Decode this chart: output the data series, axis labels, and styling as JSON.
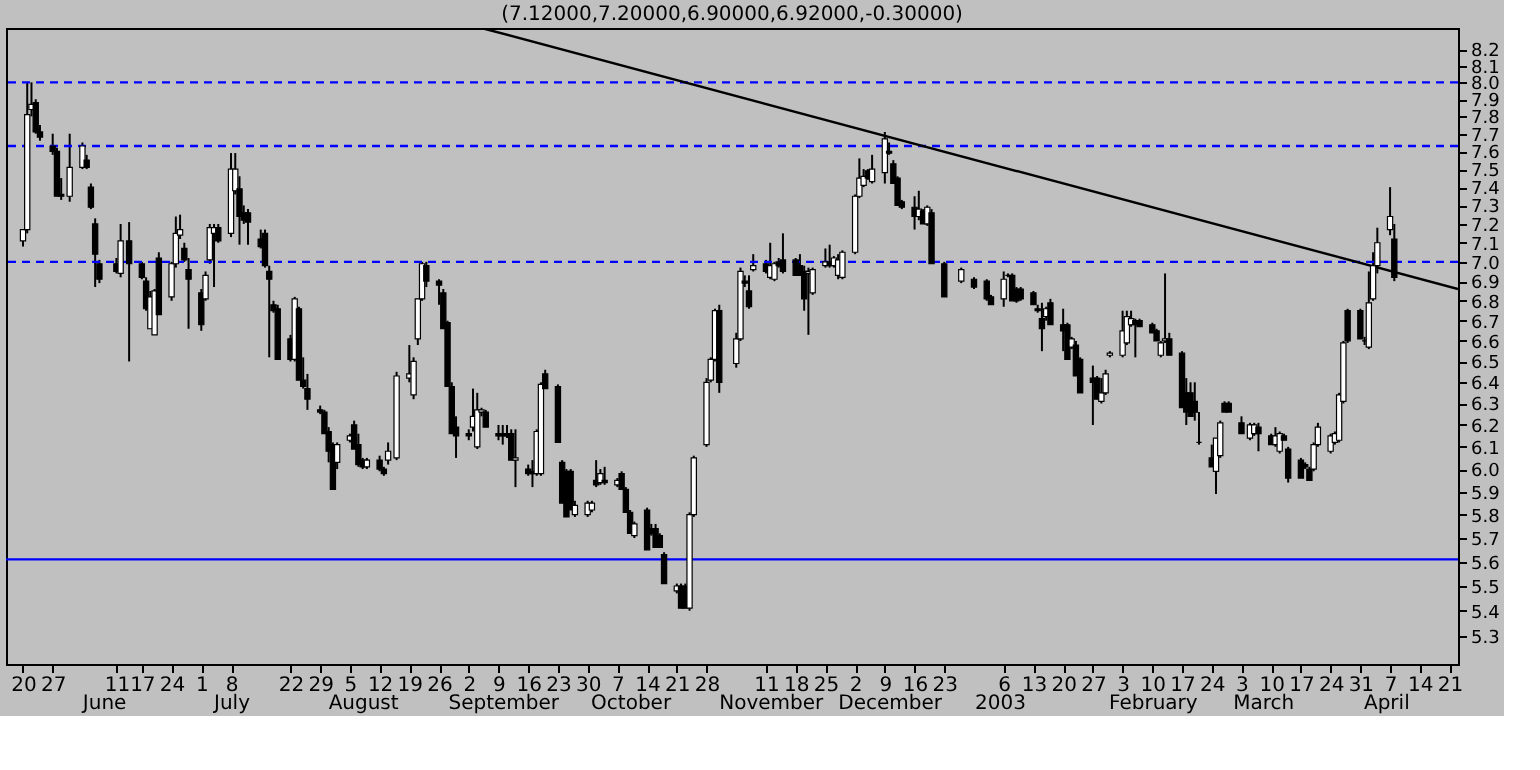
{
  "chart_data": {
    "type": "candlestick",
    "title": "(7.12000,7.20000,6.90000,6.92000,-0.30000)",
    "x": [
      "2002-05-20",
      "2002-05-21",
      "2002-05-22",
      "2002-05-23",
      "2002-05-24",
      "2002-05-27",
      "2002-05-28",
      "2002-05-29",
      "2002-05-31",
      "2002-06-03",
      "2002-06-04",
      "2002-06-05",
      "2002-06-06",
      "2002-06-07",
      "2002-06-11",
      "2002-06-12",
      "2002-06-14",
      "2002-06-17",
      "2002-06-18",
      "2002-06-19",
      "2002-06-20",
      "2002-06-21",
      "2002-06-24",
      "2002-06-25",
      "2002-06-26",
      "2002-06-27",
      "2002-06-28",
      "2002-07-01",
      "2002-07-02",
      "2002-07-03",
      "2002-07-04",
      "2002-07-05",
      "2002-07-08",
      "2002-07-09",
      "2002-07-10",
      "2002-07-11",
      "2002-07-12",
      "2002-07-15",
      "2002-07-16",
      "2002-07-17",
      "2002-07-18",
      "2002-07-19",
      "2002-07-22",
      "2002-07-23",
      "2002-07-24",
      "2002-07-25",
      "2002-07-26",
      "2002-07-29",
      "2002-07-30",
      "2002-07-31",
      "2002-08-01",
      "2002-08-02",
      "2002-08-05",
      "2002-08-06",
      "2002-08-07",
      "2002-08-08",
      "2002-08-09",
      "2002-08-12",
      "2002-08-13",
      "2002-08-14",
      "2002-08-16",
      "2002-08-19",
      "2002-08-20",
      "2002-08-21",
      "2002-08-22",
      "2002-08-23",
      "2002-08-26",
      "2002-08-27",
      "2002-08-28",
      "2002-08-29",
      "2002-08-30",
      "2002-09-02",
      "2002-09-03",
      "2002-09-04",
      "2002-09-05",
      "2002-09-06",
      "2002-09-09",
      "2002-09-10",
      "2002-09-11",
      "2002-09-12",
      "2002-09-13",
      "2002-09-16",
      "2002-09-17",
      "2002-09-18",
      "2002-09-19",
      "2002-09-20",
      "2002-09-23",
      "2002-09-24",
      "2002-09-25",
      "2002-09-26",
      "2002-09-27",
      "2002-09-30",
      "2002-10-01",
      "2002-10-02",
      "2002-10-03",
      "2002-10-04",
      "2002-10-07",
      "2002-10-08",
      "2002-10-09",
      "2002-10-10",
      "2002-10-11",
      "2002-10-14",
      "2002-10-15",
      "2002-10-16",
      "2002-10-17",
      "2002-10-18",
      "2002-10-21",
      "2002-10-22",
      "2002-10-23",
      "2002-10-24",
      "2002-10-25",
      "2002-10-28",
      "2002-10-29",
      "2002-10-30",
      "2002-10-31",
      "2002-11-04",
      "2002-11-05",
      "2002-11-06",
      "2002-11-07",
      "2002-11-08",
      "2002-11-11",
      "2002-11-12",
      "2002-11-13",
      "2002-11-14",
      "2002-11-15",
      "2002-11-18",
      "2002-11-19",
      "2002-11-20",
      "2002-11-21",
      "2002-11-22",
      "2002-11-25",
      "2002-11-26",
      "2002-11-27",
      "2002-11-28",
      "2002-11-29",
      "2002-12-02",
      "2002-12-03",
      "2002-12-04",
      "2002-12-05",
      "2002-12-06",
      "2002-12-09",
      "2002-12-10",
      "2002-12-11",
      "2002-12-12",
      "2002-12-13",
      "2002-12-16",
      "2002-12-17",
      "2002-12-18",
      "2002-12-19",
      "2002-12-20",
      "2002-12-23",
      "2002-12-27",
      "2002-12-30",
      "2003-01-02",
      "2003-01-03",
      "2003-01-06",
      "2003-01-07",
      "2003-01-08",
      "2003-01-09",
      "2003-01-10",
      "2003-01-13",
      "2003-01-14",
      "2003-01-15",
      "2003-01-16",
      "2003-01-17",
      "2003-01-20",
      "2003-01-21",
      "2003-01-22",
      "2003-01-23",
      "2003-01-24",
      "2003-01-27",
      "2003-01-28",
      "2003-01-29",
      "2003-01-30",
      "2003-01-31",
      "2003-02-03",
      "2003-02-04",
      "2003-02-05",
      "2003-02-06",
      "2003-02-07",
      "2003-02-10",
      "2003-02-11",
      "2003-02-12",
      "2003-02-13",
      "2003-02-14",
      "2003-02-17",
      "2003-02-18",
      "2003-02-19",
      "2003-02-20",
      "2003-02-21",
      "2003-02-24",
      "2003-02-25",
      "2003-02-26",
      "2003-02-27",
      "2003-02-28",
      "2003-03-03",
      "2003-03-05",
      "2003-03-06",
      "2003-03-07",
      "2003-03-10",
      "2003-03-11",
      "2003-03-12",
      "2003-03-13",
      "2003-03-14",
      "2003-03-17",
      "2003-03-18",
      "2003-03-19",
      "2003-03-20",
      "2003-03-21",
      "2003-03-24",
      "2003-03-25",
      "2003-03-26",
      "2003-03-27",
      "2003-03-28",
      "2003-03-31",
      "2003-04-01",
      "2003-04-02",
      "2003-04-03",
      "2003-04-04",
      "2003-04-07",
      "2003-04-08"
    ],
    "ohlc": [
      [
        7.11,
        7.17,
        7.08,
        7.17
      ],
      [
        7.17,
        8.0,
        7.15,
        7.81
      ],
      [
        7.84,
        8.0,
        7.8,
        7.87
      ],
      [
        7.88,
        7.9,
        7.7,
        7.71
      ],
      [
        7.71,
        7.75,
        7.66,
        7.68
      ],
      [
        7.63,
        7.7,
        7.58,
        7.6
      ],
      [
        7.6,
        7.62,
        7.35,
        7.35
      ],
      [
        7.36,
        7.45,
        7.33,
        7.35
      ],
      [
        7.35,
        7.7,
        7.32,
        7.51
      ],
      [
        7.51,
        7.65,
        7.5,
        7.63
      ],
      [
        7.55,
        7.58,
        7.5,
        7.51
      ],
      [
        7.4,
        7.42,
        7.28,
        7.29
      ],
      [
        7.2,
        7.23,
        6.87,
        7.04
      ],
      [
        6.99,
        7.01,
        6.89,
        6.91
      ],
      [
        6.99,
        7.02,
        6.94,
        6.95
      ],
      [
        6.94,
        7.2,
        6.92,
        7.11
      ],
      [
        7.11,
        7.21,
        6.5,
        6.99
      ],
      [
        6.99,
        7.0,
        6.91,
        6.92
      ],
      [
        6.9,
        6.92,
        6.75,
        6.76
      ],
      [
        6.66,
        6.85,
        6.66,
        6.82
      ],
      [
        6.63,
        6.86,
        6.63,
        6.85
      ],
      [
        7.02,
        7.05,
        6.73,
        6.73
      ],
      [
        6.82,
        7.0,
        6.8,
        6.99
      ],
      [
        6.99,
        7.24,
        6.97,
        7.15
      ],
      [
        7.14,
        7.25,
        7.12,
        7.17
      ],
      [
        7.07,
        7.1,
        7.0,
        7.01
      ],
      [
        6.96,
        7.02,
        6.66,
        6.91
      ],
      [
        6.84,
        6.86,
        6.65,
        6.68
      ],
      [
        6.81,
        6.95,
        6.8,
        6.93
      ],
      [
        7.01,
        7.2,
        6.99,
        7.18
      ],
      [
        7.15,
        7.2,
        6.87,
        7.18
      ],
      [
        7.18,
        7.2,
        7.1,
        7.11
      ],
      [
        7.15,
        7.59,
        7.13,
        7.5
      ],
      [
        7.38,
        7.59,
        7.36,
        7.5
      ],
      [
        7.39,
        7.46,
        7.09,
        7.24
      ],
      [
        7.26,
        7.3,
        7.2,
        7.22
      ],
      [
        7.26,
        7.28,
        7.09,
        7.21
      ],
      [
        7.12,
        7.17,
        7.07,
        7.08
      ],
      [
        7.15,
        7.17,
        6.97,
        6.98
      ],
      [
        6.95,
        6.98,
        6.52,
        6.91
      ],
      [
        6.78,
        6.8,
        6.74,
        6.75
      ],
      [
        6.76,
        6.78,
        6.51,
        6.51
      ],
      [
        6.61,
        6.63,
        6.5,
        6.51
      ],
      [
        6.51,
        6.82,
        6.5,
        6.81
      ],
      [
        6.76,
        6.77,
        6.41,
        6.41
      ],
      [
        6.41,
        6.52,
        6.37,
        6.38
      ],
      [
        6.37,
        6.44,
        6.27,
        6.32
      ],
      [
        6.27,
        6.29,
        6.25,
        6.26
      ],
      [
        6.26,
        6.27,
        6.16,
        6.16
      ],
      [
        6.17,
        6.19,
        6.03,
        6.08
      ],
      [
        6.11,
        6.12,
        5.91,
        5.91
      ],
      [
        6.03,
        6.12,
        6.0,
        6.11
      ],
      [
        6.13,
        6.16,
        6.12,
        6.15
      ],
      [
        6.2,
        6.22,
        6.09,
        6.09
      ],
      [
        6.11,
        6.16,
        6.01,
        6.02
      ],
      [
        6.04,
        6.05,
        6.0,
        6.01
      ],
      [
        6.01,
        6.05,
        6.0,
        6.04
      ],
      [
        6.04,
        6.06,
        5.99,
        6.0
      ],
      [
        6.0,
        6.01,
        5.97,
        5.98
      ],
      [
        6.04,
        6.12,
        6.02,
        6.08
      ],
      [
        6.05,
        6.45,
        6.04,
        6.43
      ],
      [
        6.42,
        6.58,
        6.4,
        6.44
      ],
      [
        6.34,
        6.52,
        6.32,
        6.5
      ],
      [
        6.61,
        6.81,
        6.58,
        6.81
      ],
      [
        6.81,
        7.0,
        6.8,
        6.99
      ],
      [
        6.98,
        7.0,
        6.87,
        6.9
      ],
      [
        6.9,
        6.91,
        6.78,
        6.88
      ],
      [
        6.84,
        6.86,
        6.66,
        6.66
      ],
      [
        6.69,
        6.7,
        6.38,
        6.38
      ],
      [
        6.38,
        6.4,
        6.16,
        6.16
      ],
      [
        6.19,
        6.24,
        6.05,
        6.15
      ],
      [
        6.16,
        6.18,
        6.13,
        6.15
      ],
      [
        6.19,
        6.37,
        6.17,
        6.24
      ],
      [
        6.1,
        6.35,
        6.09,
        6.27
      ],
      [
        6.26,
        6.28,
        6.24,
        6.27
      ],
      [
        6.26,
        6.27,
        6.19,
        6.19
      ],
      [
        6.16,
        6.2,
        6.13,
        6.15
      ],
      [
        6.16,
        6.2,
        6.11,
        6.15
      ],
      [
        6.16,
        6.2,
        6.14,
        6.15
      ],
      [
        6.16,
        6.18,
        6.04,
        6.04
      ],
      [
        6.04,
        6.18,
        5.92,
        6.05
      ],
      [
        6.0,
        6.02,
        5.97,
        5.98
      ],
      [
        5.99,
        6.04,
        5.92,
        5.98
      ],
      [
        5.98,
        6.18,
        5.97,
        6.17
      ],
      [
        5.98,
        6.4,
        5.97,
        6.39
      ],
      [
        6.44,
        6.46,
        6.37,
        6.37
      ],
      [
        6.38,
        6.39,
        6.12,
        6.12
      ],
      [
        6.03,
        6.04,
        5.85,
        5.85
      ],
      [
        5.99,
        6.0,
        5.79,
        5.79
      ],
      [
        5.99,
        6.0,
        5.82,
        5.82
      ],
      [
        5.8,
        5.86,
        5.79,
        5.84
      ],
      [
        5.8,
        5.86,
        5.79,
        5.85
      ],
      [
        5.82,
        5.86,
        5.81,
        5.85
      ],
      [
        5.95,
        6.04,
        5.92,
        5.93
      ],
      [
        5.94,
        6.0,
        5.93,
        5.98
      ],
      [
        5.95,
        6.01,
        5.93,
        5.94
      ],
      [
        5.93,
        5.96,
        5.92,
        5.95
      ],
      [
        5.98,
        5.99,
        5.91,
        5.91
      ],
      [
        5.91,
        5.92,
        5.81,
        5.81
      ],
      [
        5.81,
        5.82,
        5.72,
        5.72
      ],
      [
        5.71,
        5.77,
        5.7,
        5.76
      ],
      [
        5.82,
        5.83,
        5.65,
        5.65
      ],
      [
        5.74,
        5.76,
        5.71,
        5.72
      ],
      [
        5.74,
        5.76,
        5.66,
        5.66
      ],
      [
        5.71,
        5.72,
        5.66,
        5.66
      ],
      [
        5.63,
        5.64,
        5.51,
        5.51
      ],
      [
        5.48,
        5.51,
        5.47,
        5.5
      ],
      [
        5.5,
        5.51,
        5.41,
        5.41
      ],
      [
        5.5,
        5.51,
        5.41,
        5.41
      ],
      [
        5.41,
        5.81,
        5.4,
        5.8
      ],
      [
        5.8,
        6.06,
        5.79,
        6.05
      ],
      [
        6.11,
        6.42,
        6.1,
        6.4
      ],
      [
        6.41,
        6.52,
        6.4,
        6.51
      ],
      [
        6.51,
        6.76,
        6.5,
        6.75
      ],
      [
        6.75,
        6.78,
        6.35,
        6.4
      ],
      [
        6.49,
        6.64,
        6.47,
        6.61
      ],
      [
        6.61,
        6.97,
        6.6,
        6.95
      ],
      [
        6.9,
        6.93,
        6.87,
        6.89
      ],
      [
        6.85,
        6.93,
        6.76,
        6.77
      ],
      [
        6.96,
        7.04,
        6.95,
        6.98
      ],
      [
        6.99,
        7.01,
        6.94,
        6.95
      ],
      [
        6.92,
        7.1,
        6.91,
        6.98
      ],
      [
        6.91,
        7.0,
        6.9,
        6.99
      ],
      [
        7.0,
        7.02,
        6.97,
        6.98
      ],
      [
        7.01,
        7.15,
        6.94,
        6.95
      ],
      [
        7.01,
        7.02,
        6.93,
        6.93
      ],
      [
        6.98,
        7.04,
        6.93,
        6.93
      ],
      [
        6.95,
        6.98,
        6.75,
        6.81
      ],
      [
        6.94,
        6.97,
        6.63,
        6.95
      ],
      [
        6.84,
        6.97,
        6.83,
        6.96
      ],
      [
        6.98,
        7.07,
        6.97,
        7.0
      ],
      [
        7.0,
        7.09,
        6.97,
        6.98
      ],
      [
        6.98,
        7.03,
        6.97,
        7.02
      ],
      [
        6.93,
        7.04,
        6.91,
        7.01
      ],
      [
        6.92,
        7.06,
        6.91,
        7.05
      ],
      [
        7.05,
        7.36,
        7.04,
        7.35
      ],
      [
        7.35,
        7.56,
        7.34,
        7.45
      ],
      [
        7.41,
        7.5,
        7.4,
        7.46
      ],
      [
        7.49,
        7.5,
        7.44,
        7.45
      ],
      [
        7.43,
        7.58,
        7.42,
        7.5
      ],
      [
        7.48,
        7.71,
        7.42,
        7.67
      ],
      [
        7.6,
        7.65,
        7.58,
        7.59
      ],
      [
        7.53,
        7.55,
        7.42,
        7.42
      ],
      [
        7.45,
        7.46,
        7.3,
        7.3
      ],
      [
        7.32,
        7.33,
        7.28,
        7.29
      ],
      [
        7.29,
        7.35,
        7.17,
        7.24
      ],
      [
        7.24,
        7.38,
        7.22,
        7.28
      ],
      [
        7.27,
        7.28,
        7.2,
        7.2
      ],
      [
        7.2,
        7.3,
        7.19,
        7.29
      ],
      [
        7.26,
        7.28,
        6.99,
        6.99
      ],
      [
        6.99,
        7.0,
        6.82,
        6.82
      ],
      [
        6.9,
        6.97,
        6.89,
        6.96
      ],
      [
        6.91,
        6.92,
        6.86,
        6.87
      ],
      [
        6.9,
        6.91,
        6.8,
        6.81
      ],
      [
        6.82,
        6.83,
        6.78,
        6.78
      ],
      [
        6.81,
        6.95,
        6.77,
        6.91
      ],
      [
        6.93,
        6.94,
        6.92,
        6.93
      ],
      [
        6.93,
        6.94,
        6.8,
        6.8
      ],
      [
        6.86,
        6.87,
        6.79,
        6.8
      ],
      [
        6.86,
        6.87,
        6.8,
        6.81
      ],
      [
        6.84,
        6.85,
        6.78,
        6.78
      ],
      [
        6.76,
        6.78,
        6.74,
        6.75
      ],
      [
        6.71,
        6.79,
        6.55,
        6.66
      ],
      [
        6.72,
        6.77,
        6.7,
        6.76
      ],
      [
        6.79,
        6.81,
        6.68,
        6.68
      ],
      [
        6.68,
        6.76,
        6.55,
        6.65
      ],
      [
        6.68,
        6.69,
        6.51,
        6.51
      ],
      [
        6.57,
        6.62,
        6.56,
        6.61
      ],
      [
        6.58,
        6.6,
        6.43,
        6.43
      ],
      [
        6.51,
        6.52,
        6.35,
        6.35
      ],
      [
        6.42,
        6.48,
        6.2,
        6.4
      ],
      [
        6.42,
        6.43,
        6.32,
        6.32
      ],
      [
        6.31,
        6.42,
        6.3,
        6.35
      ],
      [
        6.35,
        6.46,
        6.34,
        6.44
      ],
      [
        6.53,
        6.55,
        6.52,
        6.54
      ],
      [
        6.53,
        6.75,
        6.52,
        6.65
      ],
      [
        6.59,
        6.75,
        6.58,
        6.72
      ],
      [
        6.68,
        6.75,
        6.67,
        6.71
      ],
      [
        6.7,
        6.71,
        6.52,
        6.68
      ],
      [
        6.7,
        6.71,
        6.67,
        6.67
      ],
      [
        6.68,
        6.69,
        6.64,
        6.64
      ],
      [
        6.65,
        6.66,
        6.6,
        6.6
      ],
      [
        6.53,
        6.6,
        6.52,
        6.59
      ],
      [
        6.6,
        6.94,
        6.59,
        6.61
      ],
      [
        6.61,
        6.64,
        6.53,
        6.53
      ],
      [
        6.54,
        6.55,
        6.28,
        6.28
      ],
      [
        6.35,
        6.42,
        6.2,
        6.26
      ],
      [
        6.35,
        6.4,
        6.24,
        6.24
      ],
      [
        6.31,
        6.4,
        6.22,
        6.26
      ],
      [
        6.12,
        6.26,
        6.11,
        6.12
      ],
      [
        6.05,
        6.11,
        6.01,
        6.01
      ],
      [
        5.99,
        6.14,
        5.89,
        6.14
      ],
      [
        6.06,
        6.22,
        6.05,
        6.21
      ],
      [
        6.3,
        6.31,
        6.26,
        6.26
      ],
      [
        6.3,
        6.31,
        6.26,
        6.26
      ],
      [
        6.21,
        6.24,
        6.16,
        6.16
      ],
      [
        6.14,
        6.21,
        6.13,
        6.2
      ],
      [
        6.16,
        6.21,
        6.15,
        6.2
      ],
      [
        6.19,
        6.21,
        6.08,
        6.16
      ],
      [
        6.15,
        6.16,
        6.11,
        6.11
      ],
      [
        6.11,
        6.19,
        6.1,
        6.15
      ],
      [
        6.08,
        6.17,
        6.07,
        6.16
      ],
      [
        6.15,
        6.16,
        6.13,
        6.13
      ],
      [
        6.09,
        6.1,
        5.94,
        5.96
      ],
      [
        6.04,
        6.05,
        5.96,
        5.96
      ],
      [
        6.02,
        6.03,
        6.0,
        6.01
      ],
      [
        6.0,
        6.01,
        5.95,
        5.95
      ],
      [
        6.0,
        6.12,
        5.99,
        6.11
      ],
      [
        6.11,
        6.21,
        6.1,
        6.19
      ],
      [
        6.08,
        6.16,
        6.07,
        6.15
      ],
      [
        6.12,
        6.17,
        6.11,
        6.16
      ],
      [
        6.13,
        6.35,
        6.12,
        6.34
      ],
      [
        6.31,
        6.6,
        6.3,
        6.59
      ],
      [
        6.75,
        6.76,
        6.59,
        6.6
      ],
      [
        6.75,
        6.76,
        6.61,
        6.61
      ],
      [
        6.6,
        6.62,
        6.58,
        6.6
      ],
      [
        6.57,
        6.95,
        6.56,
        6.79
      ],
      [
        6.81,
        7.05,
        6.8,
        6.98
      ],
      [
        6.98,
        7.18,
        6.94,
        7.1
      ],
      [
        7.17,
        7.4,
        7.14,
        7.24
      ],
      [
        7.12,
        7.2,
        6.9,
        6.92
      ]
    ],
    "series": [
      {
        "type": "line",
        "x": [
          "2002-09-05",
          "2003-04-23"
        ],
        "values": [
          8.33,
          6.86
        ],
        "color": "#000000",
        "line_style": "solid"
      }
    ],
    "xlim": [
      "2002-05-16",
      "2003-04-23"
    ],
    "xticks": [
      {
        "value": "2002-05-20",
        "label": "20"
      },
      {
        "value": "2002-05-27",
        "label": "27"
      },
      {
        "value": "2002-06-11",
        "label": "11"
      },
      {
        "value": "2002-06-17",
        "label": "17"
      },
      {
        "value": "2002-06-24",
        "label": "24"
      },
      {
        "value": "2002-07-01",
        "label": "1"
      },
      {
        "value": "2002-07-08",
        "label": "8"
      },
      {
        "value": "2002-07-22",
        "label": "22"
      },
      {
        "value": "2002-07-29",
        "label": "29"
      },
      {
        "value": "2002-08-05",
        "label": "5"
      },
      {
        "value": "2002-08-12",
        "label": "12"
      },
      {
        "value": "2002-08-19",
        "label": "19"
      },
      {
        "value": "2002-08-26",
        "label": "26"
      },
      {
        "value": "2002-09-02",
        "label": "2"
      },
      {
        "value": "2002-09-09",
        "label": "9"
      },
      {
        "value": "2002-09-16",
        "label": "16"
      },
      {
        "value": "2002-09-23",
        "label": "23"
      },
      {
        "value": "2002-09-30",
        "label": "30"
      },
      {
        "value": "2002-10-07",
        "label": "7"
      },
      {
        "value": "2002-10-14",
        "label": "14"
      },
      {
        "value": "2002-10-21",
        "label": "21"
      },
      {
        "value": "2002-10-28",
        "label": "28"
      },
      {
        "value": "2002-11-11",
        "label": "11"
      },
      {
        "value": "2002-11-18",
        "label": "18"
      },
      {
        "value": "2002-11-25",
        "label": "25"
      },
      {
        "value": "2002-12-02",
        "label": "2"
      },
      {
        "value": "2002-12-09",
        "label": "9"
      },
      {
        "value": "2002-12-16",
        "label": "16"
      },
      {
        "value": "2002-12-23",
        "label": "23"
      },
      {
        "value": "2003-01-06",
        "label": "6"
      },
      {
        "value": "2003-01-13",
        "label": "13"
      },
      {
        "value": "2003-01-20",
        "label": "20"
      },
      {
        "value": "2003-01-27",
        "label": "27"
      },
      {
        "value": "2003-02-03",
        "label": "3"
      },
      {
        "value": "2003-02-10",
        "label": "10"
      },
      {
        "value": "2003-02-17",
        "label": "17"
      },
      {
        "value": "2003-02-24",
        "label": "24"
      },
      {
        "value": "2003-03-03",
        "label": "3"
      },
      {
        "value": "2003-03-10",
        "label": "10"
      },
      {
        "value": "2003-03-17",
        "label": "17"
      },
      {
        "value": "2003-03-24",
        "label": "24"
      },
      {
        "value": "2003-03-31",
        "label": "31"
      },
      {
        "value": "2003-04-07",
        "label": "7"
      },
      {
        "value": "2003-04-14",
        "label": "14"
      },
      {
        "value": "2003-04-21",
        "label": "21"
      }
    ],
    "x2ticks": [
      {
        "value": "2002-06-08",
        "label": "June"
      },
      {
        "value": "2002-07-08",
        "label": "July"
      },
      {
        "value": "2002-08-08",
        "label": "August"
      },
      {
        "value": "2002-09-10",
        "label": "September"
      },
      {
        "value": "2002-10-10",
        "label": "October"
      },
      {
        "value": "2002-11-12",
        "label": "November"
      },
      {
        "value": "2002-12-10",
        "label": "December"
      },
      {
        "value": "2003-01-05",
        "label": "2003"
      },
      {
        "value": "2003-02-10",
        "label": "February"
      },
      {
        "value": "2003-03-08",
        "label": "March"
      },
      {
        "value": "2003-04-06",
        "label": "April"
      }
    ],
    "x2lim": [
      "2002-05-16",
      "2003-04-23"
    ],
    "ylim": [
      5.19,
      8.33
    ],
    "log": true,
    "yticks": [
      5.3,
      5.4,
      5.5,
      5.6,
      5.7,
      5.8,
      5.9,
      {
        "value": 6,
        "label": "6.0"
      },
      6.1,
      6.2,
      6.3,
      6.4,
      6.5,
      6.6,
      6.7,
      6.8,
      6.9,
      {
        "value": 7,
        "label": "7.0"
      },
      7.1,
      7.2,
      7.3,
      7.4,
      7.5,
      7.6,
      7.7,
      7.8,
      7.9,
      {
        "value": 8,
        "label": "8.0"
      },
      8.1,
      8.2
    ],
    "ref_lines": [
      {
        "axis": "y",
        "value": 8.0,
        "color": "#0000ff",
        "line_style": "dashed"
      },
      {
        "axis": "y",
        "value": 7.63,
        "color": "#0000ff",
        "line_style": "dashed"
      },
      {
        "axis": "y",
        "value": 7.0,
        "color": "#0000ff",
        "line_style": "dashed"
      },
      {
        "axis": "y",
        "value": 5.61,
        "color": "#0000ff",
        "line_style": "solid"
      }
    ],
    "tick_labels": true,
    "grid": false
  }
}
